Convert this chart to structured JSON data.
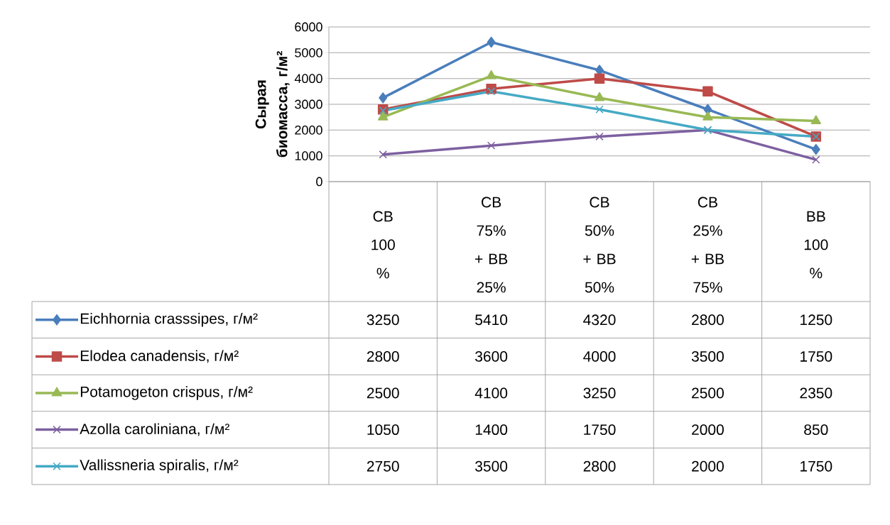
{
  "chart_data": {
    "type": "line",
    "ylabel": "Сырая биомасса, г/м²",
    "categories": [
      "СВ 100 %",
      "СВ 75% + ВВ 25%",
      "СВ 50% + ВВ 50%",
      "СВ 25% + ВВ 75%",
      "ВВ 100 %"
    ],
    "series": [
      {
        "name": "Eichhornia crasssipes, г/м²",
        "color": "#4a7ebb",
        "marker": "diamond",
        "values": [
          3250,
          5410,
          4320,
          2800,
          1250
        ]
      },
      {
        "name": "Elodea canadensis, г/м²",
        "color": "#be4b48",
        "marker": "square",
        "values": [
          2800,
          3600,
          4000,
          3500,
          1750
        ]
      },
      {
        "name": "Potamogeton crispus, г/м²",
        "color": "#98b954",
        "marker": "triangle",
        "values": [
          2500,
          4100,
          3250,
          2500,
          2350
        ]
      },
      {
        "name": "Azolla caroliniana, г/м²",
        "color": "#7d60a0",
        "marker": "cross",
        "values": [
          1050,
          1400,
          1750,
          2000,
          850
        ]
      },
      {
        "name": "Vallissneria spiralis, г/м²",
        "color": "#46aac5",
        "marker": "cross",
        "values": [
          2750,
          3500,
          2800,
          2000,
          1750
        ]
      }
    ],
    "ylim": [
      0,
      6000
    ],
    "yticks": [
      0,
      1000,
      2000,
      3000,
      4000,
      5000,
      6000
    ],
    "grid": "y",
    "legend": "left",
    "data_labels": true,
    "line_style": "solid"
  }
}
